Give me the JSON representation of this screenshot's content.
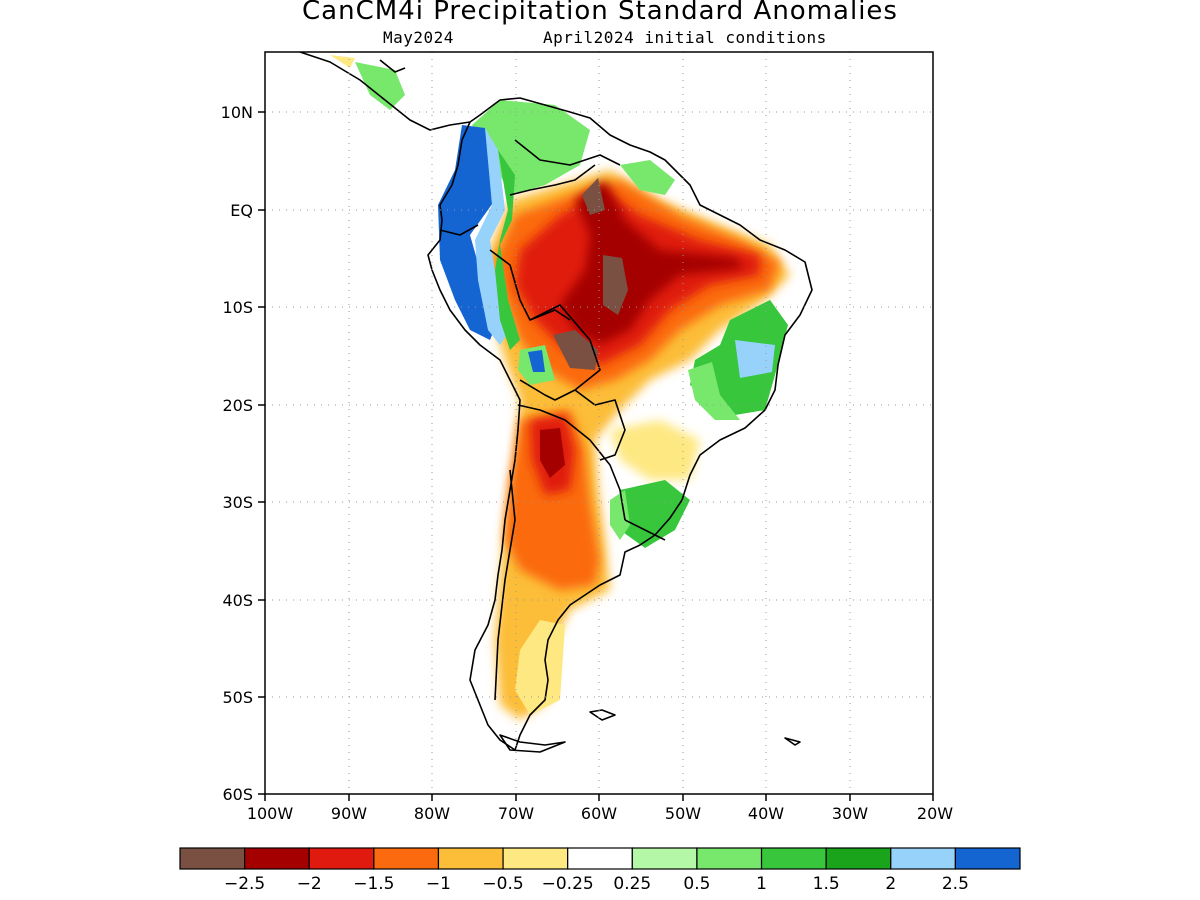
{
  "title": "CanCM4i Precipitation Standard Anomalies",
  "subtitle": {
    "valid": "May2024",
    "init": "April2024 initial conditions"
  },
  "axes": {
    "lat_labels": [
      "10N",
      "EQ",
      "10S",
      "20S",
      "30S",
      "40S",
      "50S",
      "60S"
    ],
    "lon_labels": [
      "100W",
      "90W",
      "80W",
      "70W",
      "60W",
      "50W",
      "40W",
      "30W",
      "20W"
    ],
    "lat_range": [
      -60,
      16
    ],
    "lon_range": [
      -100,
      -20
    ],
    "grid": "dotted"
  },
  "colorbar": {
    "colors": [
      "#7a5043",
      "#a50000",
      "#e01a0e",
      "#fb6a0e",
      "#fcbd38",
      "#fee882",
      "#ffffff",
      "#b4f7a6",
      "#78e86c",
      "#37c63c",
      "#1aa41c",
      "#96d2fa",
      "#1464d2"
    ],
    "labels": [
      "−2.5",
      "−2",
      "−1.5",
      "−1",
      "−0.5",
      "−0.25",
      "0.25",
      "0.5",
      "1",
      "1.5",
      "2",
      "2.5"
    ]
  }
}
